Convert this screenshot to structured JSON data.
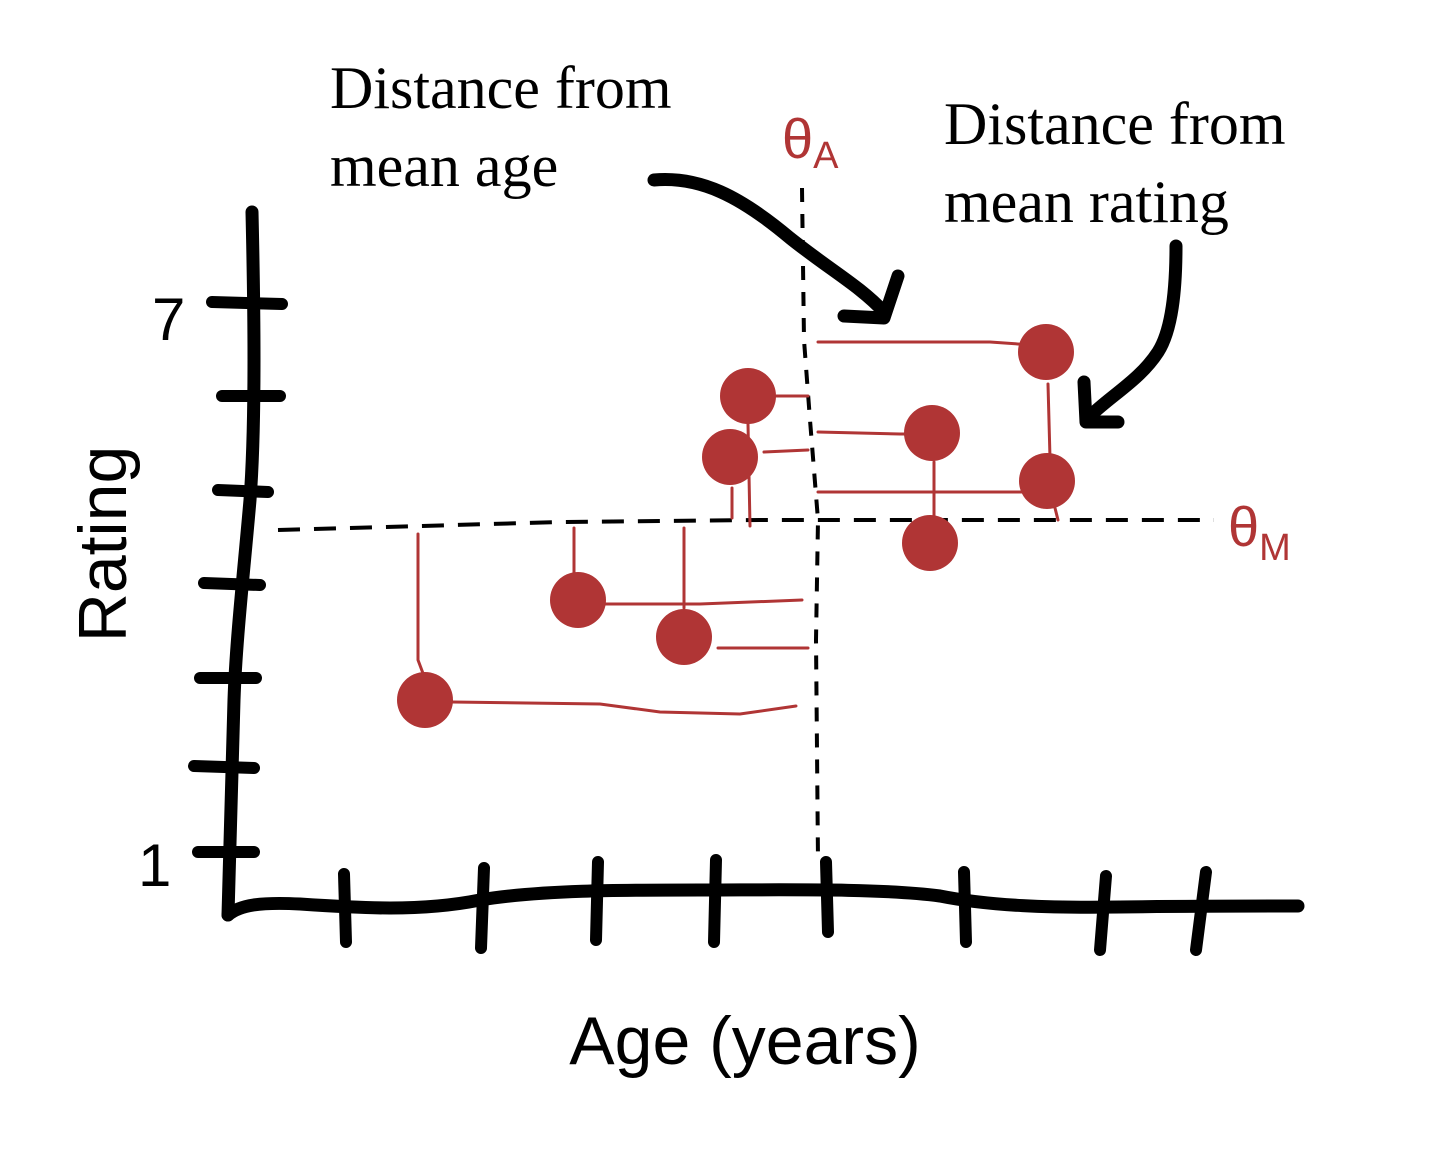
{
  "labels": {
    "y_axis": "Rating",
    "x_axis": "Age (years)",
    "y_tick_top": "7",
    "y_tick_bottom": "1",
    "theta_a": "θ",
    "theta_a_sub": "A",
    "theta_m": "θ",
    "theta_m_sub": "M",
    "annotation_age_line1": "Distance from",
    "annotation_age_line2": "mean age",
    "annotation_rating_line1": "Distance from",
    "annotation_rating_line2": "mean rating"
  },
  "colors": {
    "ink": "#000000",
    "accent": "#b03535"
  }
}
